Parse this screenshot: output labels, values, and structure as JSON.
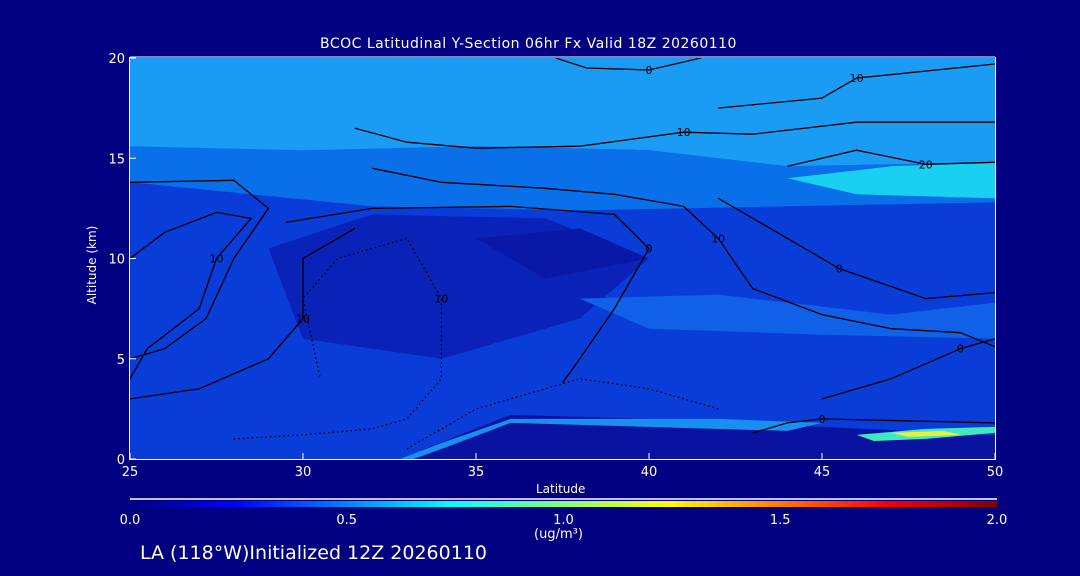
{
  "chart_data": {
    "type": "heatmap",
    "subtype": "filled-contour cross-section",
    "title": "BCOC Latitudinal Y-Section 06hr  Fx Valid 18Z 20260110",
    "xlabel": "Latitude",
    "ylabel": "Altitude (km)",
    "xlim": [
      25,
      50
    ],
    "ylim": [
      0,
      20
    ],
    "xticks": [
      "25",
      "30",
      "35",
      "40",
      "45",
      "50"
    ],
    "yticks": [
      "0",
      "5",
      "10",
      "15",
      "20"
    ],
    "colorbar": {
      "units": "(ug/m³)",
      "range": [
        0.0,
        2.0
      ],
      "ticks": [
        "0.0",
        "0.5",
        "1.0",
        "1.5",
        "2.0"
      ],
      "colors": [
        "#000080",
        "#0000ff",
        "#00ffff",
        "#ffff00",
        "#ff0000",
        "#800000"
      ]
    },
    "fill_regions": [
      {
        "value": 0.55,
        "color": "#1a9cf5",
        "points": [
          [
            25,
            20
          ],
          [
            50,
            20
          ],
          [
            50,
            14.8
          ],
          [
            44,
            14.6
          ],
          [
            40,
            15.4
          ],
          [
            35,
            15.6
          ],
          [
            30,
            15.2
          ],
          [
            25,
            15.0
          ]
        ]
      },
      {
        "value": 0.4,
        "color": "#0a70ea",
        "points": [
          [
            25,
            15.6
          ],
          [
            30,
            15.4
          ],
          [
            35,
            15.6
          ],
          [
            40,
            15.4
          ],
          [
            44,
            14.6
          ],
          [
            50,
            14.8
          ],
          [
            50,
            12.8
          ],
          [
            44,
            12.6
          ],
          [
            38,
            12.4
          ],
          [
            32,
            12.6
          ],
          [
            25,
            13.8
          ]
        ]
      },
      {
        "value": 0.7,
        "color": "#19d0f0",
        "points": [
          [
            44,
            14.0
          ],
          [
            47,
            14.6
          ],
          [
            50,
            14.8
          ],
          [
            50,
            13.0
          ],
          [
            46,
            13.2
          ]
        ]
      },
      {
        "value": 0.3,
        "color": "#0a3cd8",
        "points": [
          [
            25,
            13.8
          ],
          [
            32,
            12.6
          ],
          [
            38,
            12.4
          ],
          [
            44,
            12.6
          ],
          [
            50,
            12.8
          ],
          [
            50,
            0
          ],
          [
            25,
            0
          ]
        ]
      },
      {
        "value": 0.2,
        "color": "#0a22b8",
        "points": [
          [
            29,
            10.5
          ],
          [
            32,
            12.2
          ],
          [
            37,
            12
          ],
          [
            40,
            10
          ],
          [
            38,
            7
          ],
          [
            34,
            5
          ],
          [
            30,
            6
          ]
        ]
      },
      {
        "value": 0.15,
        "color": "#0a18a8",
        "points": [
          [
            35,
            11
          ],
          [
            38,
            11.5
          ],
          [
            40,
            10
          ],
          [
            37,
            9
          ]
        ]
      },
      {
        "value": 0.35,
        "color": "#1060e8",
        "points": [
          [
            38,
            8
          ],
          [
            42,
            8.2
          ],
          [
            47,
            7.2
          ],
          [
            50,
            7.8
          ],
          [
            50,
            6
          ],
          [
            45,
            6.2
          ],
          [
            40,
            6.5
          ]
        ]
      },
      {
        "value": 0.1,
        "color": "#0a12a0",
        "points": [
          [
            33,
            0
          ],
          [
            50,
            0
          ],
          [
            50,
            1.2
          ],
          [
            45,
            1.6
          ],
          [
            42,
            1.9
          ],
          [
            36,
            2.2
          ],
          [
            33.5,
            0.5
          ]
        ]
      },
      {
        "value": 0.45,
        "color": "#1890f0",
        "points": [
          [
            32.8,
            0
          ],
          [
            34,
            0.8
          ],
          [
            36,
            2
          ],
          [
            42,
            2
          ],
          [
            45,
            1.8
          ],
          [
            44,
            1.4
          ],
          [
            36,
            1.8
          ],
          [
            34,
            0.5
          ],
          [
            33.2,
            0
          ]
        ]
      },
      {
        "value": 1.0,
        "color": "#40e8c0",
        "points": [
          [
            46,
            1.2
          ],
          [
            48,
            1.5
          ],
          [
            50,
            1.6
          ],
          [
            50,
            1.3
          ],
          [
            48,
            1.0
          ],
          [
            46.5,
            0.9
          ]
        ]
      },
      {
        "value": 1.2,
        "color": "#e8f040",
        "points": [
          [
            47,
            1.3
          ],
          [
            48.5,
            1.4
          ],
          [
            49,
            1.2
          ],
          [
            47.5,
            1.1
          ]
        ]
      }
    ],
    "contours": [
      {
        "label": "0",
        "points": [
          [
            37.3,
            20
          ],
          [
            38.2,
            19.5
          ],
          [
            40,
            19.4
          ],
          [
            41.5,
            20
          ]
        ]
      },
      {
        "label": "10",
        "points": [
          [
            42,
            17.5
          ],
          [
            45,
            18
          ],
          [
            46,
            19
          ],
          [
            50,
            19.7
          ]
        ]
      },
      {
        "label": "10",
        "points": [
          [
            31.5,
            16.5
          ],
          [
            33,
            15.8
          ],
          [
            35,
            15.5
          ],
          [
            38,
            15.6
          ],
          [
            41,
            16.3
          ],
          [
            43,
            16.2
          ],
          [
            46,
            16.8
          ],
          [
            50,
            16.8
          ]
        ]
      },
      {
        "label": "20",
        "points": [
          [
            44,
            14.6
          ],
          [
            46,
            15.4
          ],
          [
            48,
            14.7
          ],
          [
            50,
            14.8
          ]
        ]
      },
      {
        "label": "10",
        "points": [
          [
            32,
            14.5
          ],
          [
            34,
            13.8
          ],
          [
            37,
            13.5
          ],
          [
            39,
            13.2
          ],
          [
            41,
            12.6
          ],
          [
            42,
            11
          ],
          [
            43,
            8.5
          ],
          [
            45,
            7.2
          ],
          [
            47,
            6.5
          ],
          [
            49,
            6.3
          ],
          [
            50,
            5.6
          ]
        ]
      },
      {
        "label": "0",
        "points": [
          [
            29.5,
            11.8
          ],
          [
            32,
            12.5
          ],
          [
            36,
            12.6
          ],
          [
            39,
            12.2
          ],
          [
            40,
            10.5
          ],
          [
            39,
            7.5
          ],
          [
            38,
            5
          ],
          [
            37.5,
            3.8
          ]
        ]
      },
      {
        "label": "",
        "points": [
          [
            25,
            13.8
          ],
          [
            28,
            13.9
          ],
          [
            29,
            12.5
          ],
          [
            28,
            10
          ],
          [
            27.2,
            7
          ],
          [
            26,
            5.5
          ],
          [
            25,
            5
          ]
        ]
      },
      {
        "label": "10",
        "points": [
          [
            25,
            10
          ],
          [
            26,
            11.3
          ],
          [
            27.5,
            12.3
          ],
          [
            28.5,
            12
          ],
          [
            27.5,
            10
          ],
          [
            27,
            7.5
          ],
          [
            25.5,
            5.5
          ],
          [
            25,
            4
          ]
        ]
      },
      {
        "label": "10",
        "points": [
          [
            25,
            3
          ],
          [
            27,
            3.5
          ],
          [
            29,
            5
          ],
          [
            30,
            7
          ],
          [
            30,
            10
          ],
          [
            31.5,
            11.5
          ]
        ]
      },
      {
        "label": "0",
        "points": [
          [
            42,
            13
          ],
          [
            44,
            11
          ],
          [
            45.5,
            9.5
          ],
          [
            48,
            8
          ],
          [
            50,
            8.3
          ]
        ]
      },
      {
        "label": "0",
        "points": [
          [
            45,
            3
          ],
          [
            47,
            4
          ],
          [
            49,
            5.5
          ],
          [
            50,
            6
          ]
        ]
      },
      {
        "label": "0",
        "points": [
          [
            43,
            1.3
          ],
          [
            44,
            1.8
          ],
          [
            45,
            2
          ],
          [
            50,
            1.8
          ]
        ]
      }
    ],
    "dotted_contours": [
      {
        "label": "10",
        "points": [
          [
            28,
            1
          ],
          [
            30,
            1.2
          ],
          [
            32,
            1.5
          ],
          [
            33,
            2
          ],
          [
            34,
            4
          ],
          [
            34,
            8
          ],
          [
            33,
            11
          ],
          [
            31,
            10
          ],
          [
            30,
            8
          ],
          [
            30.5,
            4
          ]
        ]
      },
      {
        "label": "",
        "points": [
          [
            33,
            0.5
          ],
          [
            35,
            2.5
          ],
          [
            38,
            4
          ],
          [
            40,
            3.5
          ],
          [
            42,
            2.5
          ]
        ]
      }
    ]
  }
}
